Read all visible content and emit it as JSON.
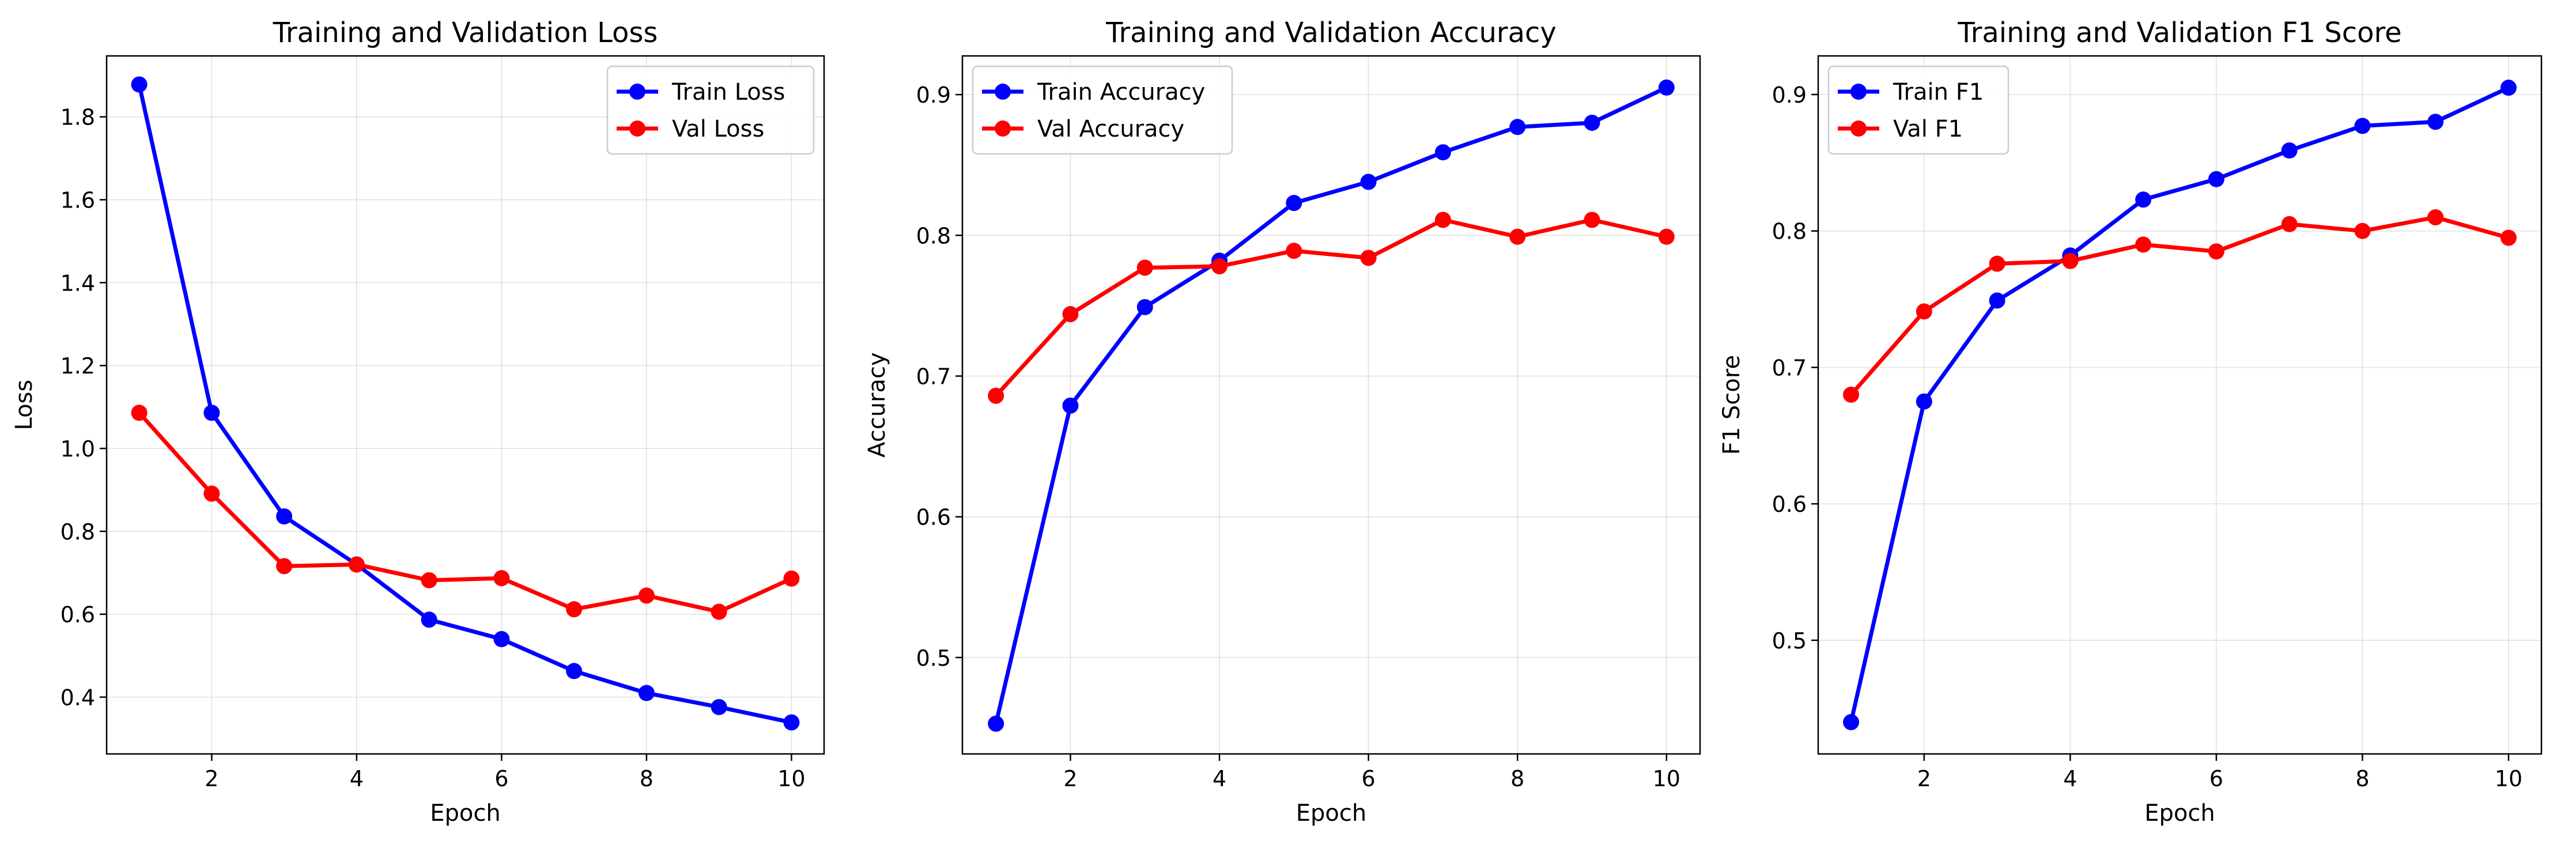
{
  "chart_data": [
    {
      "type": "line",
      "title": "Training and Validation Loss",
      "xlabel": "Epoch",
      "ylabel": "Loss",
      "x": [
        1,
        2,
        3,
        4,
        5,
        6,
        7,
        8,
        9,
        10
      ],
      "xlim": [
        0.55,
        10.45
      ],
      "ylim": [
        0.263,
        1.947
      ],
      "xticks": [
        2,
        4,
        6,
        8,
        10
      ],
      "yticks": [
        0.4,
        0.6,
        0.8,
        1.0,
        1.2,
        1.4,
        1.6,
        1.8
      ],
      "ytick_decimals": 1,
      "grid": true,
      "legend_placement": "upper-right",
      "series": [
        {
          "name": "Train Loss",
          "color": "#0000ff",
          "values": [
            1.878,
            1.086,
            0.836,
            0.72,
            0.587,
            0.54,
            0.463,
            0.41,
            0.376,
            0.339
          ]
        },
        {
          "name": "Val Loss",
          "color": "#ff0000",
          "values": [
            1.086,
            0.891,
            0.716,
            0.72,
            0.682,
            0.687,
            0.612,
            0.645,
            0.606,
            0.686
          ]
        }
      ]
    },
    {
      "type": "line",
      "title": "Training and Validation Accuracy",
      "xlabel": "Epoch",
      "ylabel": "Accuracy",
      "x": [
        1,
        2,
        3,
        4,
        5,
        6,
        7,
        8,
        9,
        10
      ],
      "xlim": [
        0.55,
        10.45
      ],
      "ylim": [
        0.4315,
        0.9275
      ],
      "xticks": [
        2,
        4,
        6,
        8,
        10
      ],
      "yticks": [
        0.5,
        0.6,
        0.7,
        0.8,
        0.9
      ],
      "ytick_decimals": 1,
      "grid": true,
      "legend_placement": "upper-left",
      "series": [
        {
          "name": "Train Accuracy",
          "color": "#0000ff",
          "values": [
            0.453,
            0.679,
            0.749,
            0.782,
            0.823,
            0.838,
            0.859,
            0.877,
            0.88,
            0.905
          ]
        },
        {
          "name": "Val Accuracy",
          "color": "#ff0000",
          "values": [
            0.686,
            0.744,
            0.777,
            0.778,
            0.789,
            0.784,
            0.811,
            0.799,
            0.811,
            0.799
          ]
        }
      ]
    },
    {
      "type": "line",
      "title": "Training and Validation F1 Score",
      "xlabel": "Epoch",
      "ylabel": "F1 Score",
      "x": [
        1,
        2,
        3,
        4,
        5,
        6,
        7,
        8,
        9,
        10
      ],
      "xlim": [
        0.55,
        10.45
      ],
      "ylim": [
        0.4167,
        0.9283
      ],
      "xticks": [
        2,
        4,
        6,
        8,
        10
      ],
      "yticks": [
        0.5,
        0.6,
        0.7,
        0.8,
        0.9
      ],
      "ytick_decimals": 1,
      "grid": true,
      "legend_placement": "upper-left",
      "series": [
        {
          "name": "Train F1",
          "color": "#0000ff",
          "values": [
            0.44,
            0.675,
            0.749,
            0.782,
            0.823,
            0.838,
            0.859,
            0.877,
            0.88,
            0.905
          ]
        },
        {
          "name": "Val F1",
          "color": "#ff0000",
          "values": [
            0.68,
            0.741,
            0.776,
            0.778,
            0.79,
            0.785,
            0.805,
            0.8,
            0.81,
            0.795
          ]
        }
      ]
    }
  ]
}
